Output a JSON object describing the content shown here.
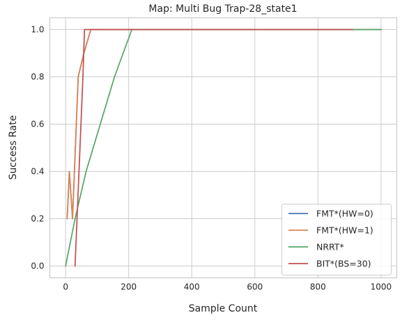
{
  "chart_data": {
    "type": "line",
    "title": "Map: Multi Bug Trap-28_state1",
    "xlabel": "Sample Count",
    "ylabel": "Success Rate",
    "xlim": [
      -50,
      1050
    ],
    "ylim": [
      -0.05,
      1.05
    ],
    "xticks": [
      0,
      200,
      400,
      600,
      800,
      1000
    ],
    "yticks": [
      0.0,
      0.2,
      0.4,
      0.6,
      0.8,
      1.0
    ],
    "xtick_labels": [
      "0",
      "200",
      "400",
      "600",
      "800",
      "1000"
    ],
    "ytick_labels": [
      "0.0",
      "0.2",
      "0.4",
      "0.6",
      "0.8",
      "1.0"
    ],
    "grid": true,
    "legend_position": "lower-right",
    "series": [
      {
        "name": "FMT*(HW=0)",
        "color": "#4c72b0",
        "points": [
          [
            5,
            0.2
          ],
          [
            12,
            0.4
          ],
          [
            22,
            0.2
          ],
          [
            40,
            0.8
          ],
          [
            58,
            0.9
          ],
          [
            80,
            1.0
          ],
          [
            1000,
            1.0
          ]
        ]
      },
      {
        "name": "FMT*(HW=1)",
        "color": "#dd8452",
        "points": [
          [
            5,
            0.2
          ],
          [
            12,
            0.4
          ],
          [
            22,
            0.2
          ],
          [
            40,
            0.8
          ],
          [
            58,
            0.9
          ],
          [
            80,
            1.0
          ],
          [
            1000,
            1.0
          ]
        ]
      },
      {
        "name": "NRRT*",
        "color": "#55a868",
        "points": [
          [
            0,
            0.0
          ],
          [
            30,
            0.2
          ],
          [
            65,
            0.4
          ],
          [
            110,
            0.6
          ],
          [
            155,
            0.8
          ],
          [
            210,
            1.0
          ],
          [
            1000,
            1.0
          ]
        ]
      },
      {
        "name": "BIT*(BS=30)",
        "color": "#c44e52",
        "points": [
          [
            30,
            0.0
          ],
          [
            55,
            0.8
          ],
          [
            60,
            1.0
          ],
          [
            910,
            1.0
          ]
        ]
      }
    ]
  }
}
